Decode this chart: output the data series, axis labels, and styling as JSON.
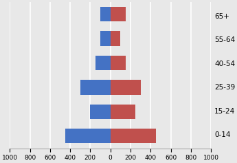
{
  "age_groups": [
    "0-14",
    "15-24",
    "25-39",
    "40-54",
    "55-64",
    "65+"
  ],
  "male": [
    450,
    200,
    300,
    150,
    100,
    100
  ],
  "female": [
    450,
    250,
    300,
    150,
    100,
    150
  ],
  "male_color": "#4472C4",
  "female_color": "#C0504D",
  "xlim": [
    -1000,
    1000
  ],
  "xticks": [
    -1000,
    -800,
    -600,
    -400,
    -200,
    0,
    200,
    400,
    600,
    800,
    1000
  ],
  "xticklabels": [
    "1000",
    "800",
    "600",
    "400",
    "200",
    "0",
    "200",
    "400",
    "600",
    "800",
    "1000"
  ],
  "background_color": "#e8e8e8",
  "grid_color": "#ffffff",
  "tick_fontsize": 6.5,
  "label_fontsize": 7.5,
  "bar_height": 0.6
}
